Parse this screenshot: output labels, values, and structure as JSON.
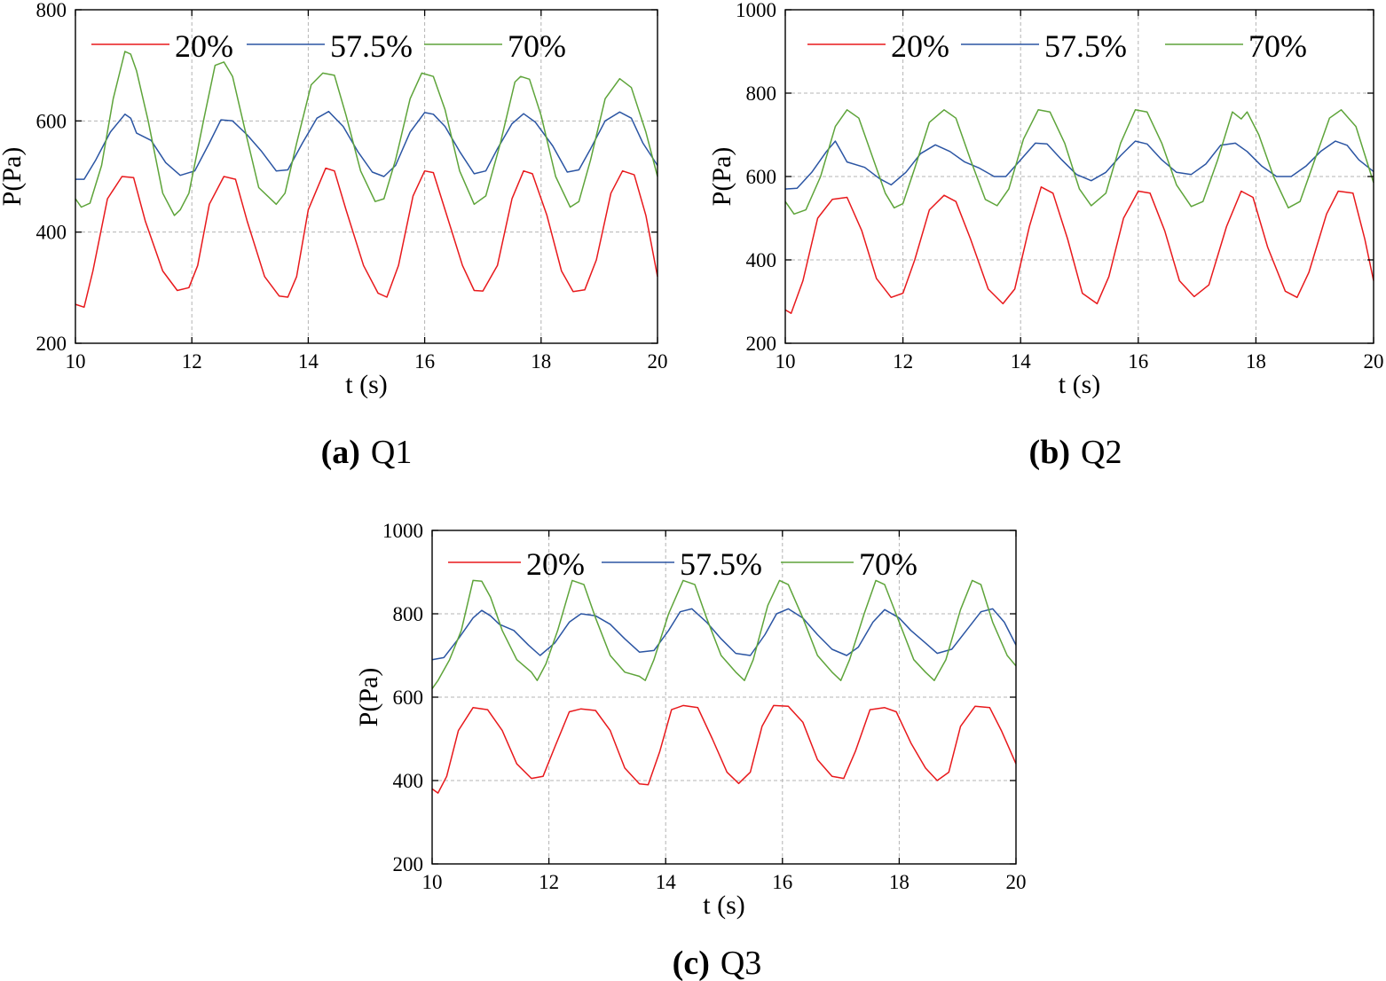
{
  "colors": {
    "s20": "#e8191c",
    "s575": "#2b55a3",
    "s70": "#5ea43a"
  },
  "chart_data": [
    {
      "id": "a",
      "type": "line",
      "caption_letter": "(a)",
      "caption_text": "Q1",
      "xlabel": "t (s)",
      "ylabel": "P(Pa)",
      "xlim": [
        10,
        20
      ],
      "ylim": [
        200,
        800
      ],
      "xticks": [
        10,
        12,
        14,
        16,
        18,
        20
      ],
      "yticks": [
        200,
        400,
        600,
        800
      ],
      "legend_position": "top",
      "series": [
        {
          "name": "20%",
          "color": "#e8191c",
          "x": [
            10,
            10.15,
            10.3,
            10.55,
            10.8,
            11.0,
            11.2,
            11.5,
            11.75,
            11.95,
            12.1,
            12.3,
            12.55,
            12.75,
            12.95,
            13.25,
            13.5,
            13.65,
            13.8,
            14.0,
            14.3,
            14.45,
            14.65,
            14.95,
            15.2,
            15.35,
            15.55,
            15.8,
            16.0,
            16.15,
            16.35,
            16.65,
            16.85,
            17.0,
            17.25,
            17.5,
            17.7,
            17.85,
            18.1,
            18.35,
            18.55,
            18.75,
            18.95,
            19.2,
            19.4,
            19.6,
            19.8,
            20.0
          ],
          "y": [
            270,
            265,
            330,
            460,
            500,
            498,
            420,
            330,
            295,
            300,
            340,
            450,
            500,
            495,
            420,
            320,
            285,
            283,
            320,
            440,
            515,
            510,
            440,
            340,
            290,
            283,
            340,
            465,
            510,
            507,
            440,
            340,
            295,
            294,
            340,
            460,
            510,
            505,
            430,
            330,
            293,
            296,
            350,
            470,
            510,
            503,
            430,
            320
          ]
        },
        {
          "name": "57.5%",
          "color": "#2b55a3",
          "x": [
            10,
            10.15,
            10.35,
            10.6,
            10.85,
            10.95,
            11.05,
            11.3,
            11.55,
            11.8,
            12.05,
            12.3,
            12.5,
            12.7,
            12.95,
            13.2,
            13.45,
            13.65,
            13.9,
            14.15,
            14.35,
            14.6,
            14.85,
            15.1,
            15.3,
            15.5,
            15.75,
            16.0,
            16.15,
            16.35,
            16.6,
            16.85,
            17.05,
            17.25,
            17.5,
            17.7,
            17.9,
            18.2,
            18.45,
            18.65,
            18.85,
            19.1,
            19.35,
            19.55,
            19.75,
            20.0
          ],
          "y": [
            495,
            495,
            530,
            580,
            612,
            605,
            578,
            565,
            525,
            502,
            510,
            560,
            602,
            600,
            575,
            545,
            510,
            512,
            560,
            605,
            617,
            590,
            545,
            508,
            500,
            520,
            580,
            615,
            612,
            590,
            545,
            505,
            510,
            550,
            595,
            613,
            598,
            555,
            508,
            512,
            550,
            600,
            616,
            605,
            560,
            520
          ]
        },
        {
          "name": "70%",
          "color": "#5ea43a",
          "x": [
            10,
            10.1,
            10.25,
            10.45,
            10.65,
            10.85,
            10.95,
            11.05,
            11.25,
            11.5,
            11.7,
            11.8,
            11.95,
            12.2,
            12.4,
            12.55,
            12.7,
            12.9,
            13.15,
            13.45,
            13.6,
            13.8,
            14.05,
            14.25,
            14.45,
            14.65,
            14.9,
            15.15,
            15.3,
            15.5,
            15.75,
            15.95,
            16.15,
            16.35,
            16.6,
            16.85,
            17.05,
            17.3,
            17.55,
            17.65,
            17.8,
            18.0,
            18.25,
            18.5,
            18.65,
            18.85,
            19.1,
            19.35,
            19.55,
            19.8,
            20.0
          ],
          "y": [
            460,
            445,
            452,
            520,
            640,
            725,
            720,
            690,
            600,
            470,
            430,
            440,
            470,
            600,
            700,
            706,
            680,
            590,
            480,
            450,
            470,
            560,
            665,
            686,
            682,
            610,
            510,
            455,
            460,
            530,
            640,
            686,
            680,
            620,
            510,
            450,
            465,
            560,
            670,
            680,
            675,
            610,
            500,
            445,
            455,
            530,
            640,
            676,
            660,
            580,
            500
          ]
        }
      ]
    },
    {
      "id": "b",
      "type": "line",
      "caption_letter": "(b)",
      "caption_text": "Q2",
      "xlabel": "t (s)",
      "ylabel": "P(Pa)",
      "xlim": [
        10,
        20
      ],
      "ylim": [
        200,
        1000
      ],
      "xticks": [
        10,
        12,
        14,
        16,
        18,
        20
      ],
      "yticks": [
        200,
        400,
        600,
        800,
        1000
      ],
      "legend_position": "top",
      "series": [
        {
          "name": "20%",
          "color": "#e8191c",
          "x": [
            10,
            10.1,
            10.3,
            10.55,
            10.8,
            11.05,
            11.3,
            11.55,
            11.8,
            12.0,
            12.2,
            12.45,
            12.7,
            12.9,
            13.15,
            13.45,
            13.7,
            13.9,
            14.15,
            14.35,
            14.55,
            14.8,
            15.05,
            15.3,
            15.5,
            15.75,
            16.0,
            16.2,
            16.45,
            16.7,
            16.95,
            17.2,
            17.5,
            17.75,
            17.95,
            18.2,
            18.5,
            18.7,
            18.9,
            19.2,
            19.4,
            19.65,
            19.85,
            20.0
          ],
          "y": [
            280,
            272,
            350,
            500,
            545,
            550,
            470,
            355,
            310,
            320,
            400,
            520,
            555,
            540,
            450,
            330,
            295,
            330,
            480,
            575,
            560,
            450,
            320,
            295,
            360,
            500,
            565,
            560,
            470,
            350,
            312,
            340,
            480,
            565,
            550,
            430,
            325,
            310,
            370,
            510,
            565,
            560,
            450,
            350
          ]
        },
        {
          "name": "57.5%",
          "color": "#2b55a3",
          "x": [
            10,
            10.2,
            10.45,
            10.7,
            10.85,
            10.95,
            11.05,
            11.35,
            11.6,
            11.8,
            12.05,
            12.3,
            12.55,
            12.8,
            13.05,
            13.3,
            13.55,
            13.75,
            14.0,
            14.25,
            14.45,
            14.7,
            14.95,
            15.2,
            15.45,
            15.7,
            15.95,
            16.15,
            16.4,
            16.65,
            16.9,
            17.15,
            17.4,
            17.65,
            17.85,
            18.1,
            18.35,
            18.6,
            18.85,
            19.1,
            19.35,
            19.55,
            19.75,
            20.0
          ],
          "y": [
            570,
            572,
            610,
            660,
            685,
            660,
            635,
            622,
            595,
            580,
            610,
            655,
            676,
            660,
            635,
            620,
            600,
            600,
            640,
            680,
            678,
            640,
            605,
            590,
            610,
            650,
            685,
            678,
            640,
            610,
            605,
            630,
            675,
            680,
            660,
            625,
            600,
            600,
            625,
            660,
            685,
            675,
            640,
            612
          ]
        },
        {
          "name": "70%",
          "color": "#5ea43a",
          "x": [
            10,
            10.15,
            10.35,
            10.6,
            10.85,
            11.05,
            11.25,
            11.45,
            11.7,
            11.85,
            12.0,
            12.2,
            12.45,
            12.7,
            12.9,
            13.15,
            13.4,
            13.6,
            13.8,
            14.05,
            14.3,
            14.5,
            14.75,
            15.0,
            15.2,
            15.45,
            15.7,
            15.95,
            16.15,
            16.4,
            16.65,
            16.9,
            17.1,
            17.35,
            17.6,
            17.75,
            17.85,
            18.05,
            18.3,
            18.55,
            18.75,
            19.0,
            19.25,
            19.45,
            19.7,
            20.0
          ],
          "y": [
            540,
            510,
            520,
            600,
            720,
            760,
            740,
            660,
            560,
            525,
            535,
            620,
            730,
            760,
            740,
            640,
            545,
            530,
            570,
            690,
            760,
            755,
            680,
            570,
            530,
            560,
            680,
            760,
            755,
            680,
            580,
            528,
            540,
            640,
            755,
            738,
            755,
            700,
            600,
            525,
            540,
            640,
            740,
            760,
            720,
            585
          ]
        }
      ]
    },
    {
      "id": "c",
      "type": "line",
      "caption_letter": "(c)",
      "caption_text": "Q3",
      "xlabel": "t (s)",
      "ylabel": "P(Pa)",
      "xlim": [
        10,
        20
      ],
      "ylim": [
        200,
        1000
      ],
      "xticks": [
        10,
        12,
        14,
        16,
        18,
        20
      ],
      "yticks": [
        200,
        400,
        600,
        800,
        1000
      ],
      "legend_position": "top",
      "series": [
        {
          "name": "20%",
          "color": "#e8191c",
          "x": [
            10,
            10.1,
            10.25,
            10.45,
            10.7,
            10.95,
            11.2,
            11.45,
            11.7,
            11.9,
            12.1,
            12.35,
            12.55,
            12.8,
            13.05,
            13.3,
            13.55,
            13.7,
            13.9,
            14.1,
            14.3,
            14.55,
            14.8,
            15.05,
            15.25,
            15.45,
            15.65,
            15.85,
            16.1,
            16.35,
            16.6,
            16.85,
            17.05,
            17.25,
            17.5,
            17.75,
            17.95,
            18.2,
            18.45,
            18.65,
            18.85,
            19.05,
            19.3,
            19.55,
            19.75,
            20.0
          ],
          "y": [
            380,
            370,
            410,
            520,
            575,
            570,
            520,
            440,
            405,
            410,
            480,
            565,
            572,
            568,
            520,
            430,
            392,
            390,
            470,
            570,
            580,
            575,
            500,
            420,
            393,
            420,
            530,
            580,
            578,
            540,
            450,
            410,
            405,
            470,
            570,
            575,
            565,
            490,
            430,
            400,
            420,
            530,
            578,
            575,
            520,
            440
          ]
        },
        {
          "name": "57.5%",
          "color": "#2b55a3",
          "x": [
            10,
            10.2,
            10.45,
            10.7,
            10.85,
            11.0,
            11.15,
            11.4,
            11.65,
            11.85,
            12.1,
            12.35,
            12.55,
            12.8,
            13.05,
            13.3,
            13.55,
            13.8,
            14.05,
            14.25,
            14.45,
            14.7,
            14.95,
            15.2,
            15.45,
            15.7,
            15.9,
            16.1,
            16.35,
            16.6,
            16.85,
            17.1,
            17.3,
            17.55,
            17.75,
            18.0,
            18.2,
            18.45,
            18.65,
            18.9,
            19.15,
            19.4,
            19.6,
            19.8,
            20.0
          ],
          "y": [
            690,
            695,
            740,
            790,
            808,
            795,
            775,
            760,
            725,
            700,
            730,
            780,
            800,
            795,
            775,
            740,
            708,
            712,
            760,
            805,
            812,
            780,
            740,
            705,
            700,
            750,
            800,
            812,
            790,
            750,
            715,
            700,
            720,
            780,
            810,
            790,
            760,
            730,
            705,
            715,
            760,
            805,
            812,
            780,
            725
          ]
        },
        {
          "name": "70%",
          "color": "#5ea43a",
          "x": [
            10,
            10.1,
            10.3,
            10.5,
            10.7,
            10.85,
            11.0,
            11.2,
            11.45,
            11.7,
            11.8,
            11.95,
            12.15,
            12.4,
            12.6,
            12.8,
            13.05,
            13.3,
            13.55,
            13.65,
            13.8,
            14.05,
            14.3,
            14.5,
            14.7,
            14.95,
            15.2,
            15.35,
            15.5,
            15.75,
            15.95,
            16.1,
            16.35,
            16.6,
            16.85,
            17.0,
            17.15,
            17.4,
            17.6,
            17.75,
            18.0,
            18.25,
            18.45,
            18.6,
            18.8,
            19.05,
            19.25,
            19.4,
            19.6,
            19.85,
            20.0
          ],
          "y": [
            620,
            640,
            690,
            760,
            880,
            878,
            840,
            760,
            690,
            660,
            640,
            680,
            760,
            880,
            870,
            790,
            700,
            660,
            650,
            640,
            690,
            800,
            880,
            870,
            790,
            700,
            660,
            640,
            690,
            820,
            880,
            870,
            790,
            700,
            660,
            640,
            690,
            800,
            880,
            870,
            780,
            690,
            660,
            640,
            690,
            810,
            880,
            870,
            780,
            700,
            675
          ]
        }
      ]
    }
  ]
}
